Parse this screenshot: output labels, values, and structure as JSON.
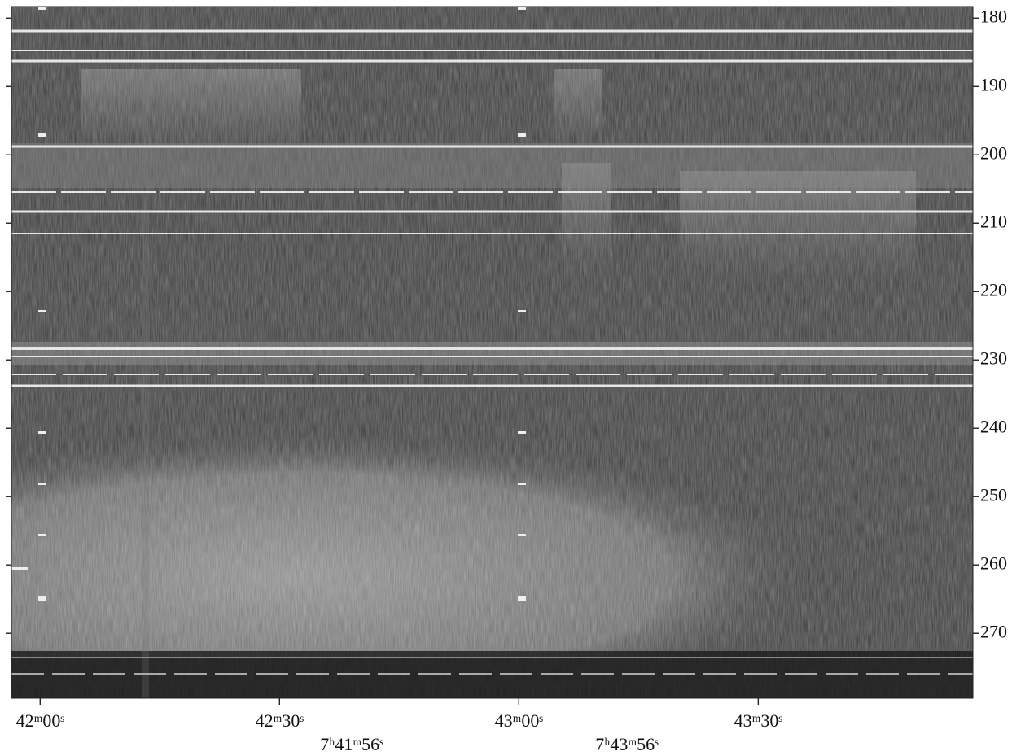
{
  "chart_data": {
    "type": "spectrogram",
    "xlim": [
      2516.4,
      2636.9
    ],
    "xticks": [
      {
        "value": 2520,
        "label": "42ᵐ00ˢ"
      },
      {
        "value": 2550,
        "label": "42ᵐ30ˢ"
      },
      {
        "value": 2580,
        "label": "43ᵐ00ˢ"
      },
      {
        "value": 2610,
        "label": "43ᵐ30ˢ"
      }
    ],
    "ylim": [
      178.3,
      279.5
    ],
    "y_inverted": true,
    "yticks": [
      180,
      190,
      200,
      210,
      220,
      230,
      240,
      250,
      260,
      270
    ],
    "annotations": [
      "7ʰ41ᵐ56ˢ",
      "7ʰ43ᵐ56ˢ"
    ]
  }
}
